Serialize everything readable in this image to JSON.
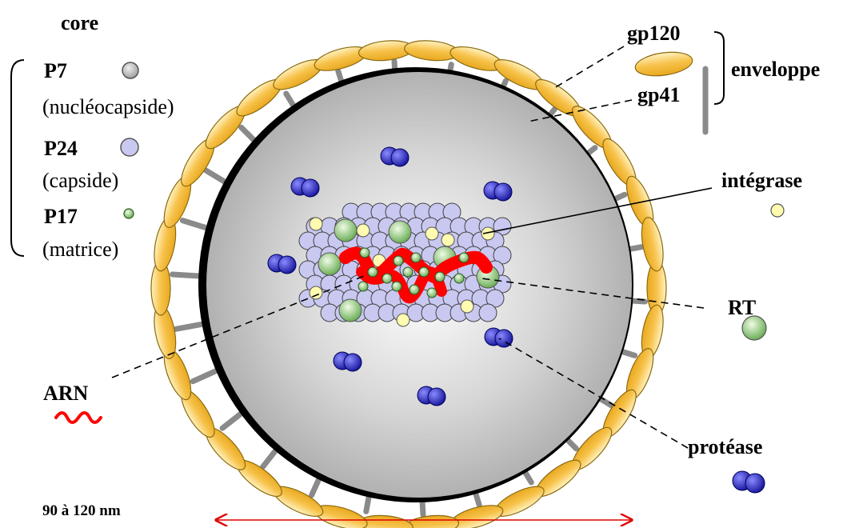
{
  "labels": {
    "core": "core",
    "p7": "P7",
    "p7_desc": "(nucléocapside)",
    "p24": "P24",
    "p24_desc": "(capside)",
    "p17": "P17",
    "p17_desc": "(matrice)",
    "gp120": "gp120",
    "gp41": "gp41",
    "enveloppe": "enveloppe",
    "integrase": "intégrase",
    "rt": "RT",
    "arn": "ARN",
    "protease": "protéase",
    "size": "90 à 120 nm"
  },
  "colors": {
    "envelope_fill": "#f7c24a",
    "spike": "#8a8a8a",
    "core_gray": "#b8b8b8",
    "capsid_blue": "#c8c8f0",
    "integrase_yellow": "#fffbb0",
    "rt_green": "#9ccc7a",
    "protease_blue": "#2a2ab8",
    "rna_red": "#ff0000"
  }
}
